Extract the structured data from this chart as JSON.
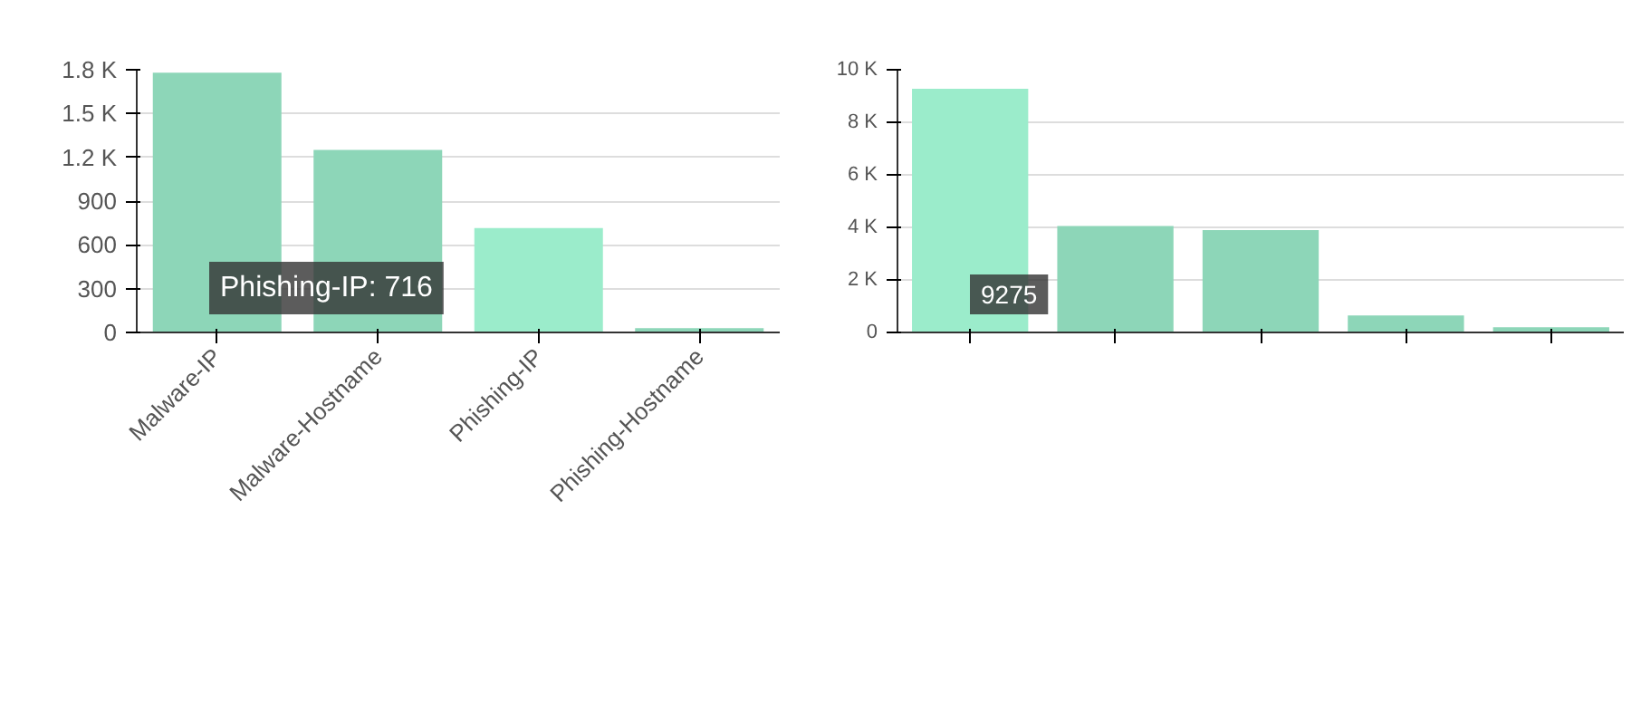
{
  "chart_data": [
    {
      "type": "bar",
      "categories": [
        "Malware-IP",
        "Malware-Hostname",
        "Phishing-IP",
        "Phishing-Hostname"
      ],
      "values": [
        1780,
        1250,
        716,
        30
      ],
      "colors": [
        "#8dd6b8",
        "#8dd6b8",
        "#9beccb",
        "#8dd6b8"
      ],
      "ylim": [
        0,
        1800
      ],
      "yticks": [
        0,
        300,
        600,
        900,
        {
          "value": 1200,
          "label": "1.2 K"
        },
        {
          "value": 1500,
          "label": "1.5 K"
        },
        {
          "value": 1800,
          "label": "1.8 K"
        }
      ],
      "grid": "y",
      "annotations": [
        "Phishing-IP: 716"
      ]
    },
    {
      "type": "bar",
      "categories": [
        null,
        null,
        null,
        null,
        null
      ],
      "values": [
        9275,
        4050,
        3900,
        650,
        200
      ],
      "colors": [
        "#9beccb",
        "#8dd6b8",
        "#8dd6b8",
        "#8dd6b8",
        "#8dd6b8"
      ],
      "ylim": [
        0,
        10000
      ],
      "yticks": [
        0,
        {
          "value": 2000,
          "label": "2 K"
        },
        {
          "value": 4000,
          "label": "4 K"
        },
        {
          "value": 6000,
          "label": "6 K"
        },
        {
          "value": 8000,
          "label": "8 K"
        },
        {
          "value": 10000,
          "label": "10 K"
        }
      ],
      "grid": "y",
      "annotations": [
        "9275"
      ]
    }
  ]
}
